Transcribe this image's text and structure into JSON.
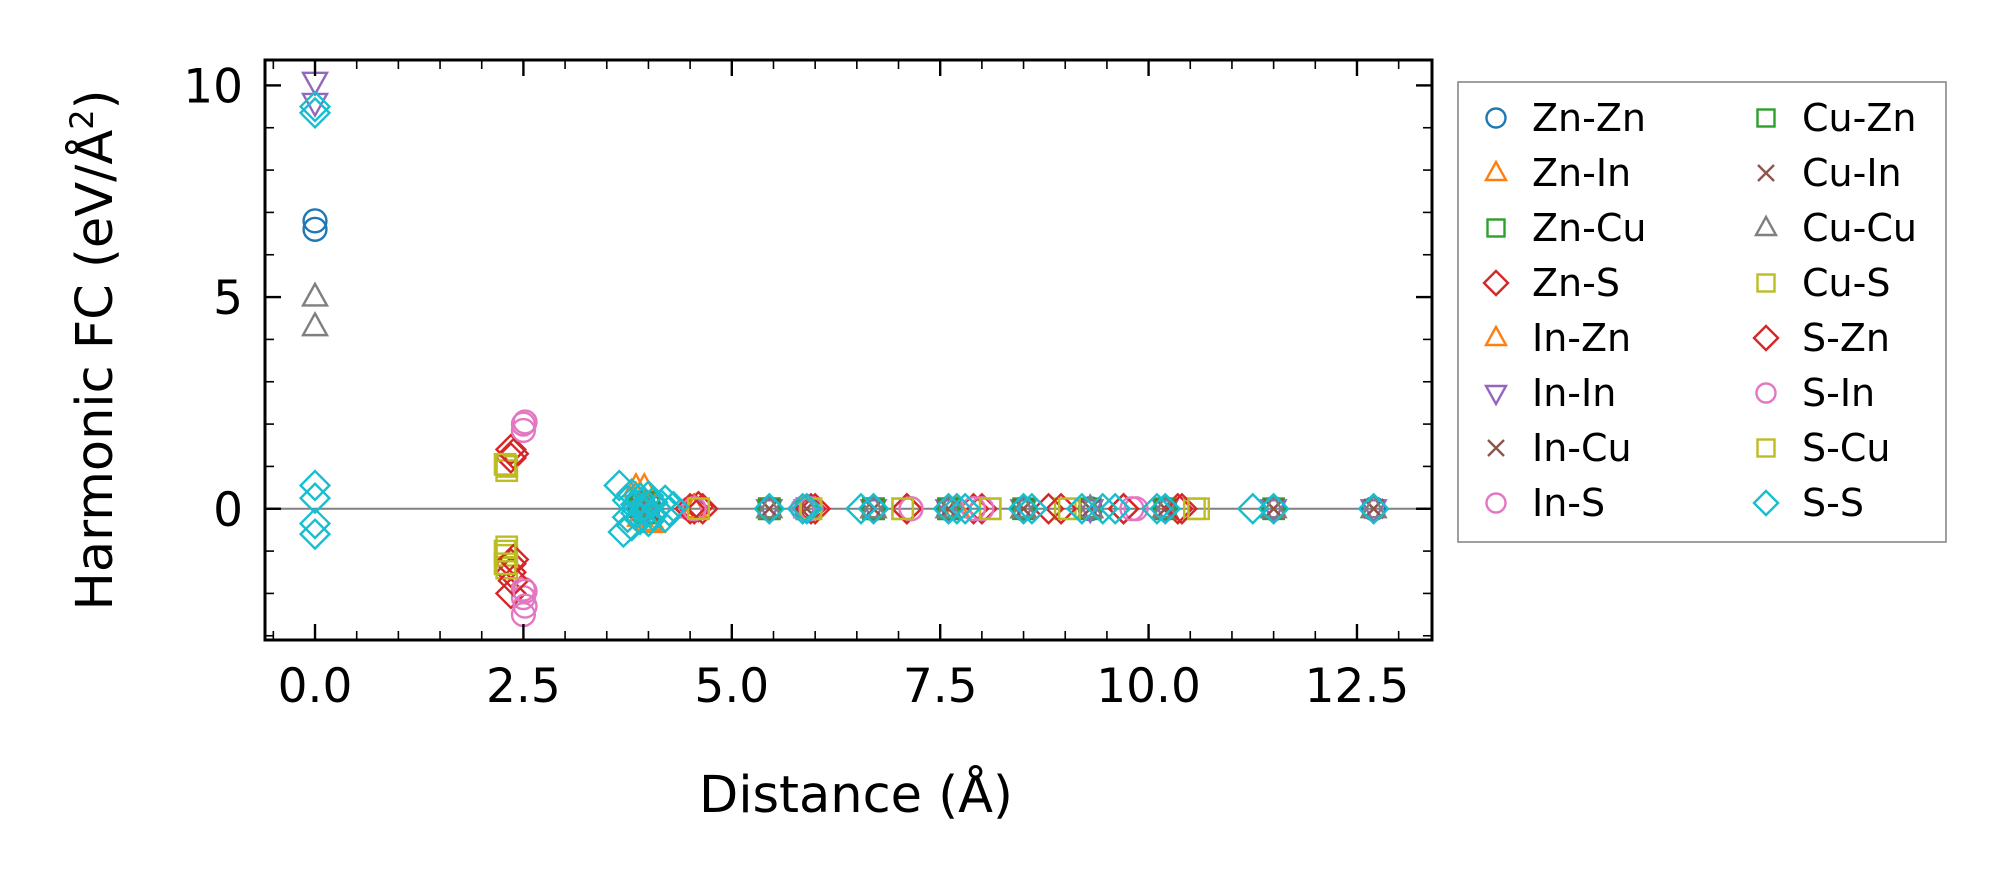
{
  "chart_data": {
    "type": "scatter",
    "xlabel": "Distance (Å)",
    "ylabel_main": "Harmonic FC (eV/Å",
    "ylabel_sup": "2",
    "ylabel_end": ")",
    "xlim": [
      -0.6,
      13.4
    ],
    "ylim": [
      -3.1,
      10.6
    ],
    "x_ticks": [
      0,
      2.5,
      5,
      7.5,
      10,
      12.5
    ],
    "x_tick_labels": [
      "0.0",
      "2.5",
      "5.0",
      "7.5",
      "10.0",
      "12.5"
    ],
    "y_ticks": [
      0,
      5,
      10
    ],
    "y_tick_labels": [
      "0",
      "5",
      "10"
    ],
    "reference_line_y": 0,
    "legend_position": "outside-right",
    "series": [
      {
        "name": "Zn-Zn",
        "marker": "circle",
        "color": "#1f77b4",
        "points": [
          [
            0,
            6.6
          ],
          [
            0,
            6.8
          ],
          [
            3.95,
            0.05
          ],
          [
            3.9,
            -0.05
          ],
          [
            4.0,
            0.1
          ],
          [
            5.45,
            0
          ],
          [
            5.9,
            0
          ],
          [
            6.7,
            0
          ],
          [
            7.6,
            0
          ],
          [
            8.5,
            0
          ],
          [
            9.3,
            0
          ],
          [
            10.2,
            0
          ],
          [
            11.5,
            0
          ],
          [
            12.7,
            0
          ]
        ]
      },
      {
        "name": "Zn-In",
        "marker": "triangle-up",
        "color": "#ff7f0e",
        "points": [
          [
            3.85,
            0.3
          ],
          [
            3.9,
            -0.2
          ],
          [
            3.95,
            0.5
          ],
          [
            4.05,
            -0.35
          ],
          [
            4.55,
            0
          ],
          [
            5.9,
            0
          ],
          [
            6.7,
            0
          ],
          [
            7.7,
            0
          ],
          [
            8.5,
            0
          ],
          [
            10.2,
            0
          ]
        ]
      },
      {
        "name": "Zn-Cu",
        "marker": "square",
        "color": "#2ca02c",
        "points": [
          [
            3.9,
            0.1
          ],
          [
            4.0,
            -0.1
          ],
          [
            5.45,
            0
          ],
          [
            5.9,
            0
          ],
          [
            6.7,
            0
          ],
          [
            7.6,
            0
          ],
          [
            9.3,
            0
          ],
          [
            11.5,
            0
          ]
        ]
      },
      {
        "name": "Zn-S",
        "marker": "diamond",
        "color": "#d62728",
        "points": [
          [
            2.35,
            1.4
          ],
          [
            2.35,
            1.2
          ],
          [
            2.35,
            -1.3
          ],
          [
            2.35,
            -1.5
          ],
          [
            2.35,
            -2.0
          ],
          [
            4.55,
            0
          ],
          [
            4.6,
            0.05
          ],
          [
            6.0,
            0
          ],
          [
            7.1,
            0
          ],
          [
            7.9,
            0
          ],
          [
            8.8,
            0
          ],
          [
            9.7,
            0
          ],
          [
            10.35,
            0
          ]
        ]
      },
      {
        "name": "In-Zn",
        "marker": "triangle-up",
        "color": "#ff7f0e",
        "points": [
          [
            3.85,
            0.5
          ],
          [
            3.95,
            0.2
          ],
          [
            4.0,
            -0.3
          ],
          [
            4.55,
            0
          ],
          [
            5.9,
            0
          ],
          [
            6.7,
            0
          ],
          [
            7.7,
            0
          ],
          [
            8.5,
            0
          ]
        ]
      },
      {
        "name": "In-In",
        "marker": "triangle-down",
        "color": "#9467bd",
        "points": [
          [
            0,
            10.1
          ],
          [
            0,
            9.6
          ],
          [
            3.9,
            0.1
          ],
          [
            3.95,
            -0.1
          ],
          [
            5.45,
            0
          ],
          [
            5.9,
            0
          ],
          [
            6.7,
            0
          ],
          [
            7.6,
            0
          ],
          [
            8.5,
            0
          ],
          [
            9.3,
            0
          ],
          [
            10.2,
            0
          ],
          [
            11.5,
            0
          ],
          [
            12.7,
            0
          ]
        ]
      },
      {
        "name": "In-Cu",
        "marker": "x",
        "color": "#8c564b",
        "points": [
          [
            3.9,
            0.05
          ],
          [
            4.0,
            -0.05
          ],
          [
            5.45,
            0
          ],
          [
            5.9,
            0
          ],
          [
            6.7,
            0
          ],
          [
            7.6,
            0
          ],
          [
            8.5,
            0
          ],
          [
            9.3,
            0
          ],
          [
            10.2,
            0
          ],
          [
            11.5,
            0
          ],
          [
            12.7,
            0
          ]
        ]
      },
      {
        "name": "In-S",
        "marker": "circle",
        "color": "#e377c2",
        "points": [
          [
            2.5,
            2.0
          ],
          [
            2.5,
            1.85
          ],
          [
            2.5,
            -1.9
          ],
          [
            2.5,
            -2.1
          ],
          [
            2.5,
            -2.5
          ],
          [
            4.5,
            0
          ],
          [
            5.85,
            0
          ],
          [
            5.9,
            0.05
          ],
          [
            7.15,
            0
          ],
          [
            7.9,
            0
          ],
          [
            9.85,
            0
          ]
        ]
      },
      {
        "name": "Cu-Zn",
        "marker": "square",
        "color": "#2ca02c",
        "points": [
          [
            3.9,
            0.05
          ],
          [
            4.0,
            0.15
          ],
          [
            5.45,
            0
          ],
          [
            5.9,
            0
          ],
          [
            6.7,
            0
          ],
          [
            7.6,
            0
          ],
          [
            8.5,
            0
          ],
          [
            10.2,
            0
          ]
        ]
      },
      {
        "name": "Cu-In",
        "marker": "x",
        "color": "#8c564b",
        "points": [
          [
            3.95,
            0.05
          ],
          [
            5.45,
            0
          ],
          [
            5.9,
            0
          ],
          [
            6.7,
            0
          ],
          [
            7.6,
            0
          ],
          [
            8.5,
            0
          ],
          [
            9.3,
            0
          ],
          [
            10.2,
            0
          ],
          [
            11.5,
            0
          ],
          [
            12.7,
            0
          ]
        ]
      },
      {
        "name": "Cu-Cu",
        "marker": "triangle-up",
        "color": "#7f7f7f",
        "points": [
          [
            0,
            5.0
          ],
          [
            0,
            4.3
          ],
          [
            3.9,
            0.05
          ],
          [
            5.45,
            0
          ],
          [
            5.9,
            0
          ],
          [
            6.7,
            0
          ],
          [
            7.6,
            0
          ],
          [
            8.5,
            0
          ],
          [
            9.3,
            0
          ],
          [
            10.2,
            0
          ],
          [
            11.5,
            0
          ],
          [
            12.7,
            0
          ]
        ]
      },
      {
        "name": "Cu-S",
        "marker": "square",
        "color": "#bcbd22",
        "points": [
          [
            2.3,
            1.0
          ],
          [
            2.3,
            0.9
          ],
          [
            2.3,
            -0.9
          ],
          [
            2.3,
            -1.1
          ],
          [
            2.3,
            -1.4
          ],
          [
            4.6,
            0
          ],
          [
            5.95,
            0
          ],
          [
            7.05,
            0
          ],
          [
            8.1,
            0
          ],
          [
            9.0,
            0
          ],
          [
            10.55,
            0
          ]
        ]
      },
      {
        "name": "S-Zn",
        "marker": "diamond",
        "color": "#d62728",
        "points": [
          [
            2.38,
            1.3
          ],
          [
            2.38,
            -1.2
          ],
          [
            2.38,
            -1.7
          ],
          [
            4.5,
            0
          ],
          [
            4.65,
            0
          ],
          [
            5.95,
            0
          ],
          [
            7.1,
            0
          ],
          [
            8.0,
            0
          ],
          [
            8.95,
            0
          ],
          [
            9.7,
            0
          ],
          [
            10.4,
            0
          ]
        ]
      },
      {
        "name": "S-In",
        "marker": "circle",
        "color": "#e377c2",
        "points": [
          [
            2.52,
            2.05
          ],
          [
            2.52,
            -1.95
          ],
          [
            2.52,
            -2.3
          ],
          [
            4.55,
            0
          ],
          [
            5.85,
            0
          ],
          [
            5.95,
            0
          ],
          [
            7.15,
            0
          ],
          [
            8.0,
            0
          ],
          [
            9.8,
            0
          ]
        ]
      },
      {
        "name": "S-Cu",
        "marker": "square",
        "color": "#bcbd22",
        "points": [
          [
            2.28,
            1.05
          ],
          [
            2.28,
            -1.0
          ],
          [
            2.28,
            -1.3
          ],
          [
            4.6,
            0
          ],
          [
            5.95,
            0
          ],
          [
            7.05,
            0
          ],
          [
            8.1,
            0
          ],
          [
            9.05,
            0
          ],
          [
            10.6,
            0
          ]
        ]
      },
      {
        "name": "S-S",
        "marker": "diamond",
        "color": "#17becf",
        "points": [
          [
            0,
            9.5
          ],
          [
            0,
            9.35
          ],
          [
            0,
            0.55
          ],
          [
            0,
            0.25
          ],
          [
            0,
            -0.35
          ],
          [
            0,
            -0.6
          ],
          [
            3.65,
            0.55
          ],
          [
            3.7,
            -0.55
          ],
          [
            3.75,
            0.2
          ],
          [
            3.75,
            -0.2
          ],
          [
            3.8,
            0.35
          ],
          [
            3.8,
            -0.4
          ],
          [
            3.85,
            0.1
          ],
          [
            3.85,
            -0.1
          ],
          [
            3.9,
            0.25
          ],
          [
            3.9,
            -0.25
          ],
          [
            3.95,
            0.05
          ],
          [
            3.95,
            -0.05
          ],
          [
            4.0,
            0.3
          ],
          [
            4.0,
            -0.3
          ],
          [
            4.05,
            0.15
          ],
          [
            4.05,
            -0.15
          ],
          [
            4.1,
            0.0
          ],
          [
            4.15,
            0.1
          ],
          [
            4.2,
            0.2
          ],
          [
            4.2,
            -0.2
          ],
          [
            4.25,
            -0.05
          ],
          [
            4.3,
            0.05
          ],
          [
            5.45,
            0
          ],
          [
            5.85,
            0
          ],
          [
            5.9,
            0
          ],
          [
            6.55,
            0
          ],
          [
            6.7,
            0
          ],
          [
            7.6,
            0
          ],
          [
            7.7,
            0
          ],
          [
            7.8,
            0
          ],
          [
            8.5,
            0
          ],
          [
            8.6,
            0
          ],
          [
            9.2,
            0
          ],
          [
            9.45,
            0
          ],
          [
            9.6,
            0
          ],
          [
            10.1,
            0
          ],
          [
            10.2,
            0
          ],
          [
            11.25,
            0
          ],
          [
            11.5,
            0
          ],
          [
            12.7,
            0
          ]
        ]
      }
    ]
  }
}
